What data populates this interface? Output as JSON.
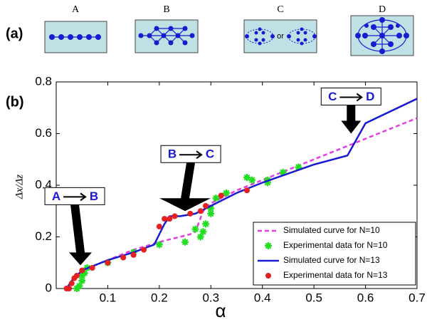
{
  "panel_a": {
    "label": "(a)",
    "boxes": [
      "A",
      "B",
      "C",
      "D"
    ],
    "separator": "or"
  },
  "chart_data": {
    "type": "line",
    "panel_label": "(b)",
    "x_label": "α",
    "y_label": "Δx/Δz",
    "xlim": [
      0,
      0.7
    ],
    "xticks": [
      0.1,
      0.2,
      0.3,
      0.4,
      0.5,
      0.6,
      0.7
    ],
    "ylim": [
      0,
      0.8
    ],
    "yticks": [
      0,
      0.2,
      0.4,
      0.6,
      0.8
    ],
    "grid": false,
    "legend": "lower right",
    "series": [
      {
        "name": "Simulated curve for N=10",
        "color": "#e23ee2",
        "style": "dashed",
        "x": [
          0.02,
          0.03,
          0.05,
          0.1,
          0.15,
          0.2,
          0.26,
          0.27,
          0.285,
          0.3,
          0.35,
          0.4,
          0.5,
          0.6,
          0.7
        ],
        "values": [
          0,
          0.03,
          0.07,
          0.11,
          0.15,
          0.18,
          0.21,
          0.22,
          0.3,
          0.33,
          0.38,
          0.42,
          0.5,
          0.58,
          0.66
        ]
      },
      {
        "name": "Experimental data for N=10",
        "color": "#22dd22",
        "style": "star",
        "x": [
          0.04,
          0.045,
          0.05,
          0.05,
          0.055,
          0.06,
          0.1,
          0.15,
          0.2,
          0.25,
          0.27,
          0.28,
          0.285,
          0.29,
          0.3,
          0.3,
          0.31,
          0.33,
          0.37,
          0.38,
          0.41,
          0.41,
          0.44,
          0.47
        ],
        "values": [
          0,
          0.01,
          0.03,
          0.05,
          0.06,
          0.08,
          0.1,
          0.14,
          0.17,
          0.18,
          0.23,
          0.2,
          0.22,
          0.25,
          0.29,
          0.31,
          0.35,
          0.37,
          0.43,
          0.42,
          0.42,
          0.41,
          0.45,
          0.47
        ]
      },
      {
        "name": "Simulated curve for N=13",
        "color": "#1a1ad0",
        "style": "solid",
        "x": [
          0.02,
          0.03,
          0.05,
          0.1,
          0.15,
          0.19,
          0.2,
          0.21,
          0.22,
          0.24,
          0.27,
          0.3,
          0.35,
          0.4,
          0.5,
          0.565,
          0.6,
          0.7
        ],
        "values": [
          0,
          0.03,
          0.07,
          0.11,
          0.14,
          0.17,
          0.21,
          0.25,
          0.28,
          0.28,
          0.29,
          0.32,
          0.37,
          0.41,
          0.48,
          0.515,
          0.64,
          0.735
        ]
      },
      {
        "name": "Experimental data for N=13",
        "color": "#e52020",
        "style": "dot",
        "x": [
          0.02,
          0.025,
          0.03,
          0.035,
          0.04,
          0.05,
          0.07,
          0.1,
          0.13,
          0.15,
          0.17,
          0.2,
          0.21,
          0.22,
          0.23,
          0.26,
          0.28,
          0.29,
          0.32,
          0.37
        ],
        "values": [
          0,
          0,
          0.02,
          0.04,
          0.05,
          0.07,
          0.08,
          0.1,
          0.12,
          0.13,
          0.15,
          0.24,
          0.27,
          0.27,
          0.28,
          0.29,
          0.3,
          0.32,
          0.36,
          0.38
        ]
      }
    ],
    "annotations": [
      {
        "from": "A",
        "to": "B",
        "x": 0.047,
        "y": 0.09
      },
      {
        "from": "B",
        "to": "C",
        "x": 0.25,
        "y": 0.3
      },
      {
        "from": "C",
        "to": "D",
        "x": 0.572,
        "y": 0.6
      }
    ]
  }
}
